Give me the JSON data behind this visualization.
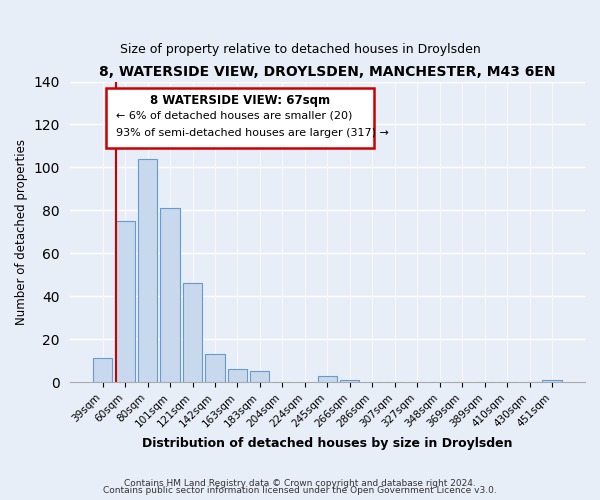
{
  "title": "8, WATERSIDE VIEW, DROYLSDEN, MANCHESTER, M43 6EN",
  "subtitle": "Size of property relative to detached houses in Droylsden",
  "xlabel": "Distribution of detached houses by size in Droylsden",
  "ylabel": "Number of detached properties",
  "bar_labels": [
    "39sqm",
    "60sqm",
    "80sqm",
    "101sqm",
    "121sqm",
    "142sqm",
    "163sqm",
    "183sqm",
    "204sqm",
    "224sqm",
    "245sqm",
    "266sqm",
    "286sqm",
    "307sqm",
    "327sqm",
    "348sqm",
    "369sqm",
    "389sqm",
    "410sqm",
    "430sqm",
    "451sqm"
  ],
  "bar_values": [
    11,
    75,
    104,
    81,
    46,
    13,
    6,
    5,
    0,
    0,
    3,
    1,
    0,
    0,
    0,
    0,
    0,
    0,
    0,
    0,
    1
  ],
  "bar_color": "#c8d9ee",
  "bar_edge_color": "#6699cc",
  "ylim": [
    0,
    140
  ],
  "yticks": [
    0,
    20,
    40,
    60,
    80,
    100,
    120,
    140
  ],
  "vline_color": "#cc0000",
  "annotation_title": "8 WATERSIDE VIEW: 67sqm",
  "annotation_line1": "← 6% of detached houses are smaller (20)",
  "annotation_line2": "93% of semi-detached houses are larger (317) →",
  "annotation_box_color": "#ffffff",
  "annotation_box_edge": "#cc0000",
  "footer_line1": "Contains HM Land Registry data © Crown copyright and database right 2024.",
  "footer_line2": "Contains public sector information licensed under the Open Government Licence v3.0.",
  "background_color": "#e8eef8",
  "plot_background": "#e8eef8",
  "grid_color": "#ffffff",
  "title_fontsize": 10,
  "subtitle_fontsize": 9
}
